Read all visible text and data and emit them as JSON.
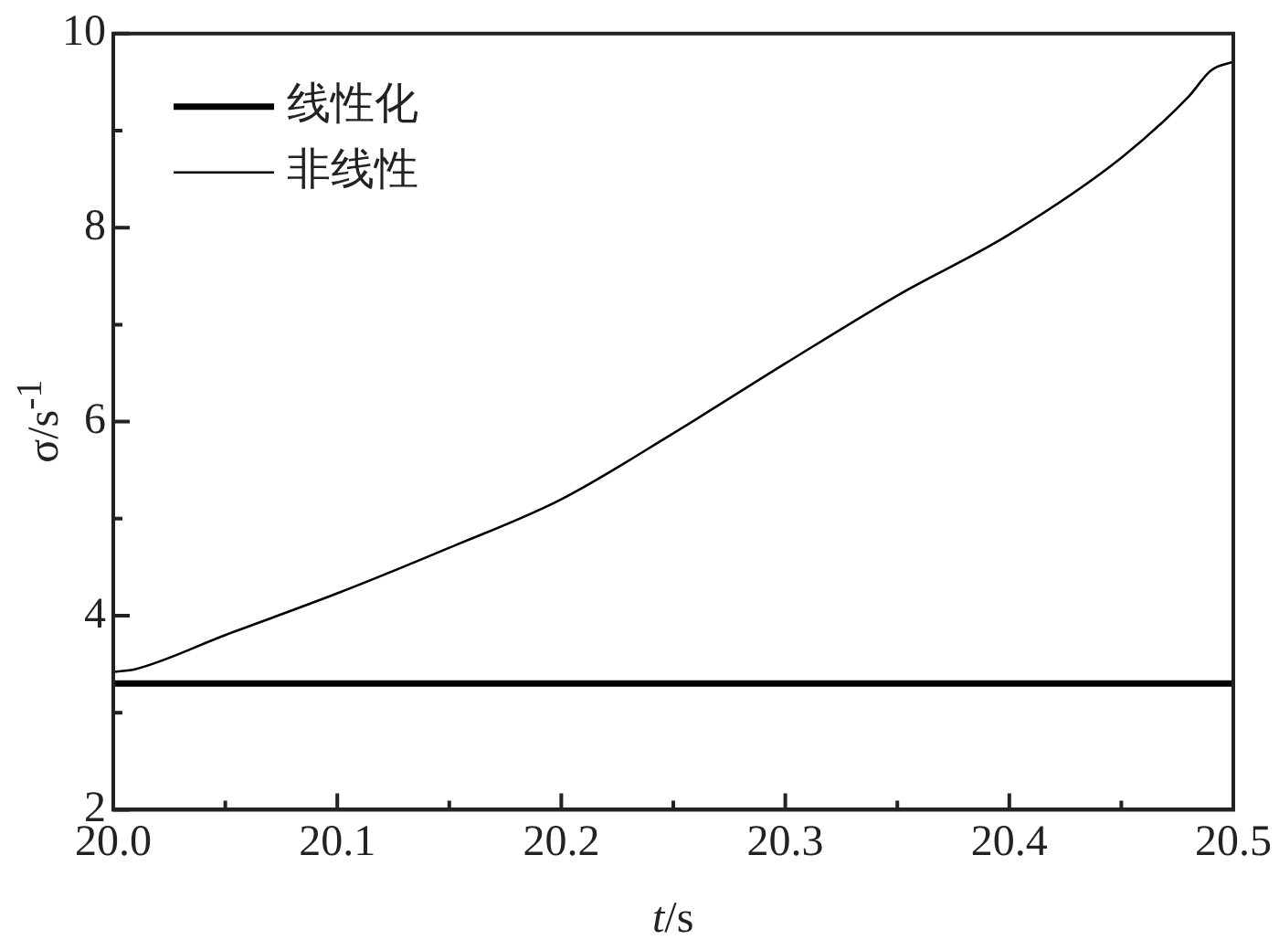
{
  "chart_data": {
    "type": "line",
    "xlabel": "t/s",
    "ylabel": "σ/s$^{-1}$",
    "xlim": [
      20.0,
      20.5
    ],
    "xticks": [
      {
        "value": 20.0,
        "label": "20.0"
      },
      {
        "value": 20.1,
        "label": "20.1"
      },
      {
        "value": 20.2,
        "label": "20.2"
      },
      {
        "value": 20.3,
        "label": "20.3"
      },
      {
        "value": 20.4,
        "label": "20.4"
      },
      {
        "value": 20.5,
        "label": "20.5"
      }
    ],
    "ylim": [
      2,
      10
    ],
    "yticks": [
      2,
      4,
      6,
      8,
      10
    ],
    "grid": false,
    "legend": "top left",
    "marker": "none",
    "line_style": "solid",
    "series": [
      {
        "name": "线性化",
        "color": "#000000",
        "x": [
          20.0,
          20.5
        ],
        "values": [
          3.3,
          3.3
        ]
      },
      {
        "name": "非线性",
        "color": "#000000",
        "x": [
          20.0,
          20.01,
          20.05,
          20.1,
          20.15,
          20.2,
          20.25,
          20.3,
          20.35,
          20.4,
          20.45,
          20.48,
          20.49,
          20.5
        ],
        "values": [
          3.42,
          3.45,
          3.8,
          4.23,
          4.7,
          5.2,
          5.88,
          6.6,
          7.3,
          7.93,
          8.72,
          9.35,
          9.62,
          9.71
        ]
      }
    ]
  }
}
